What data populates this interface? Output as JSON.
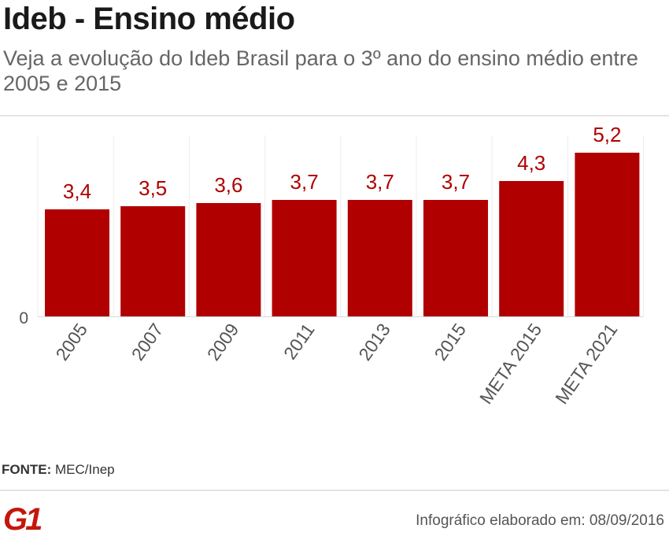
{
  "header": {
    "title": "Ideb - Ensino médio",
    "subtitle": "Veja a evolução do Ideb Brasil para o 3º ano do ensino médio entre 2005 e 2015"
  },
  "chart_data": {
    "type": "bar",
    "categories": [
      "2005",
      "2007",
      "2009",
      "2011",
      "2013",
      "2015",
      "META 2015",
      "META 2021"
    ],
    "values": [
      3.4,
      3.5,
      3.6,
      3.7,
      3.7,
      3.7,
      4.3,
      5.2
    ],
    "value_labels": [
      "3,4",
      "3,5",
      "3,6",
      "3,7",
      "3,7",
      "3,7",
      "4,3",
      "5,2"
    ],
    "y_ticks": [
      "0"
    ],
    "ylim": [
      0,
      5.9
    ],
    "grid": false,
    "bar_color": "#b00000",
    "label_color": "#b00000"
  },
  "footer": {
    "source_label": "FONTE:",
    "source_value": "MEC/Inep",
    "logo_text": "G1",
    "logo_color": "#c4170c",
    "credit": "Infográfico elaborado em: 08/09/2016"
  }
}
